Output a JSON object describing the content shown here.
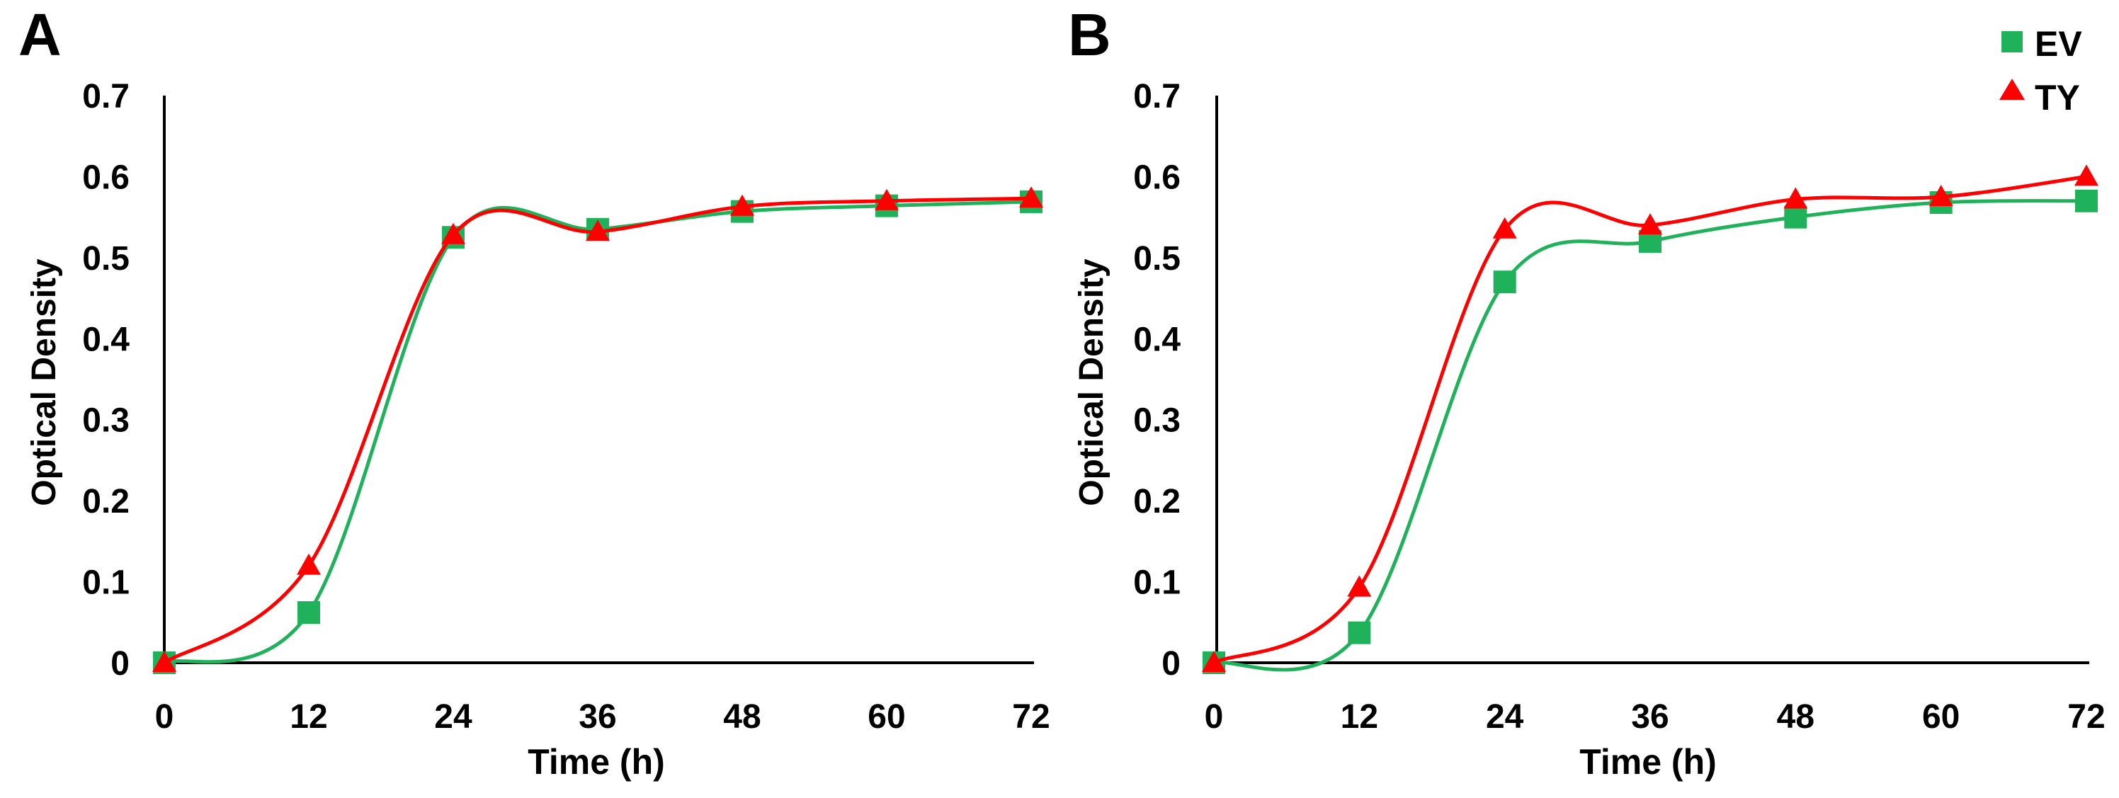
{
  "chart_data": [
    {
      "panel_label": "A",
      "type": "line",
      "title": "",
      "xlabel": "Time (h)",
      "ylabel": "Optical Density",
      "x": [
        0,
        12,
        24,
        36,
        48,
        60,
        72
      ],
      "xticks": [
        "0",
        "12",
        "24",
        "36",
        "48",
        "60",
        "72"
      ],
      "yticks": [
        "0",
        "0.1",
        "0.2",
        "0.3",
        "0.4",
        "0.5",
        "0.6",
        "0.7"
      ],
      "xlim": [
        0,
        72
      ],
      "ylim": [
        0,
        0.7
      ],
      "grid": false,
      "series": [
        {
          "name": "EV",
          "marker": "square",
          "color": "#1fb25a",
          "values": [
            0.0,
            0.062,
            0.525,
            0.535,
            0.557,
            0.564,
            0.569
          ]
        },
        {
          "name": "TY",
          "marker": "triangle",
          "color": "#ff0000",
          "values": [
            0.0,
            0.12,
            0.528,
            0.532,
            0.563,
            0.57,
            0.573
          ]
        }
      ]
    },
    {
      "panel_label": "B",
      "type": "line",
      "title": "",
      "xlabel": "Time (h)",
      "ylabel": "Optical Density",
      "x": [
        0,
        12,
        24,
        36,
        48,
        60,
        72
      ],
      "xticks": [
        "0",
        "12",
        "24",
        "36",
        "48",
        "60",
        "72"
      ],
      "yticks": [
        "0",
        "0.1",
        "0.2",
        "0.3",
        "0.4",
        "0.5",
        "0.6",
        "0.7"
      ],
      "xlim": [
        0,
        72
      ],
      "ylim": [
        0,
        0.7
      ],
      "grid": false,
      "series": [
        {
          "name": "EV",
          "marker": "square",
          "color": "#1fb25a",
          "values": [
            0.0,
            0.037,
            0.47,
            0.52,
            0.55,
            0.568,
            0.57
          ]
        },
        {
          "name": "TY",
          "marker": "triangle",
          "color": "#ff0000",
          "values": [
            0.0,
            0.093,
            0.535,
            0.54,
            0.572,
            0.575,
            0.6
          ]
        }
      ]
    }
  ],
  "legend": {
    "position": "top-right",
    "items": [
      {
        "label": "EV",
        "marker": "square",
        "color": "#1fb25a"
      },
      {
        "label": "TY",
        "marker": "triangle",
        "color": "#ff0000"
      }
    ]
  }
}
